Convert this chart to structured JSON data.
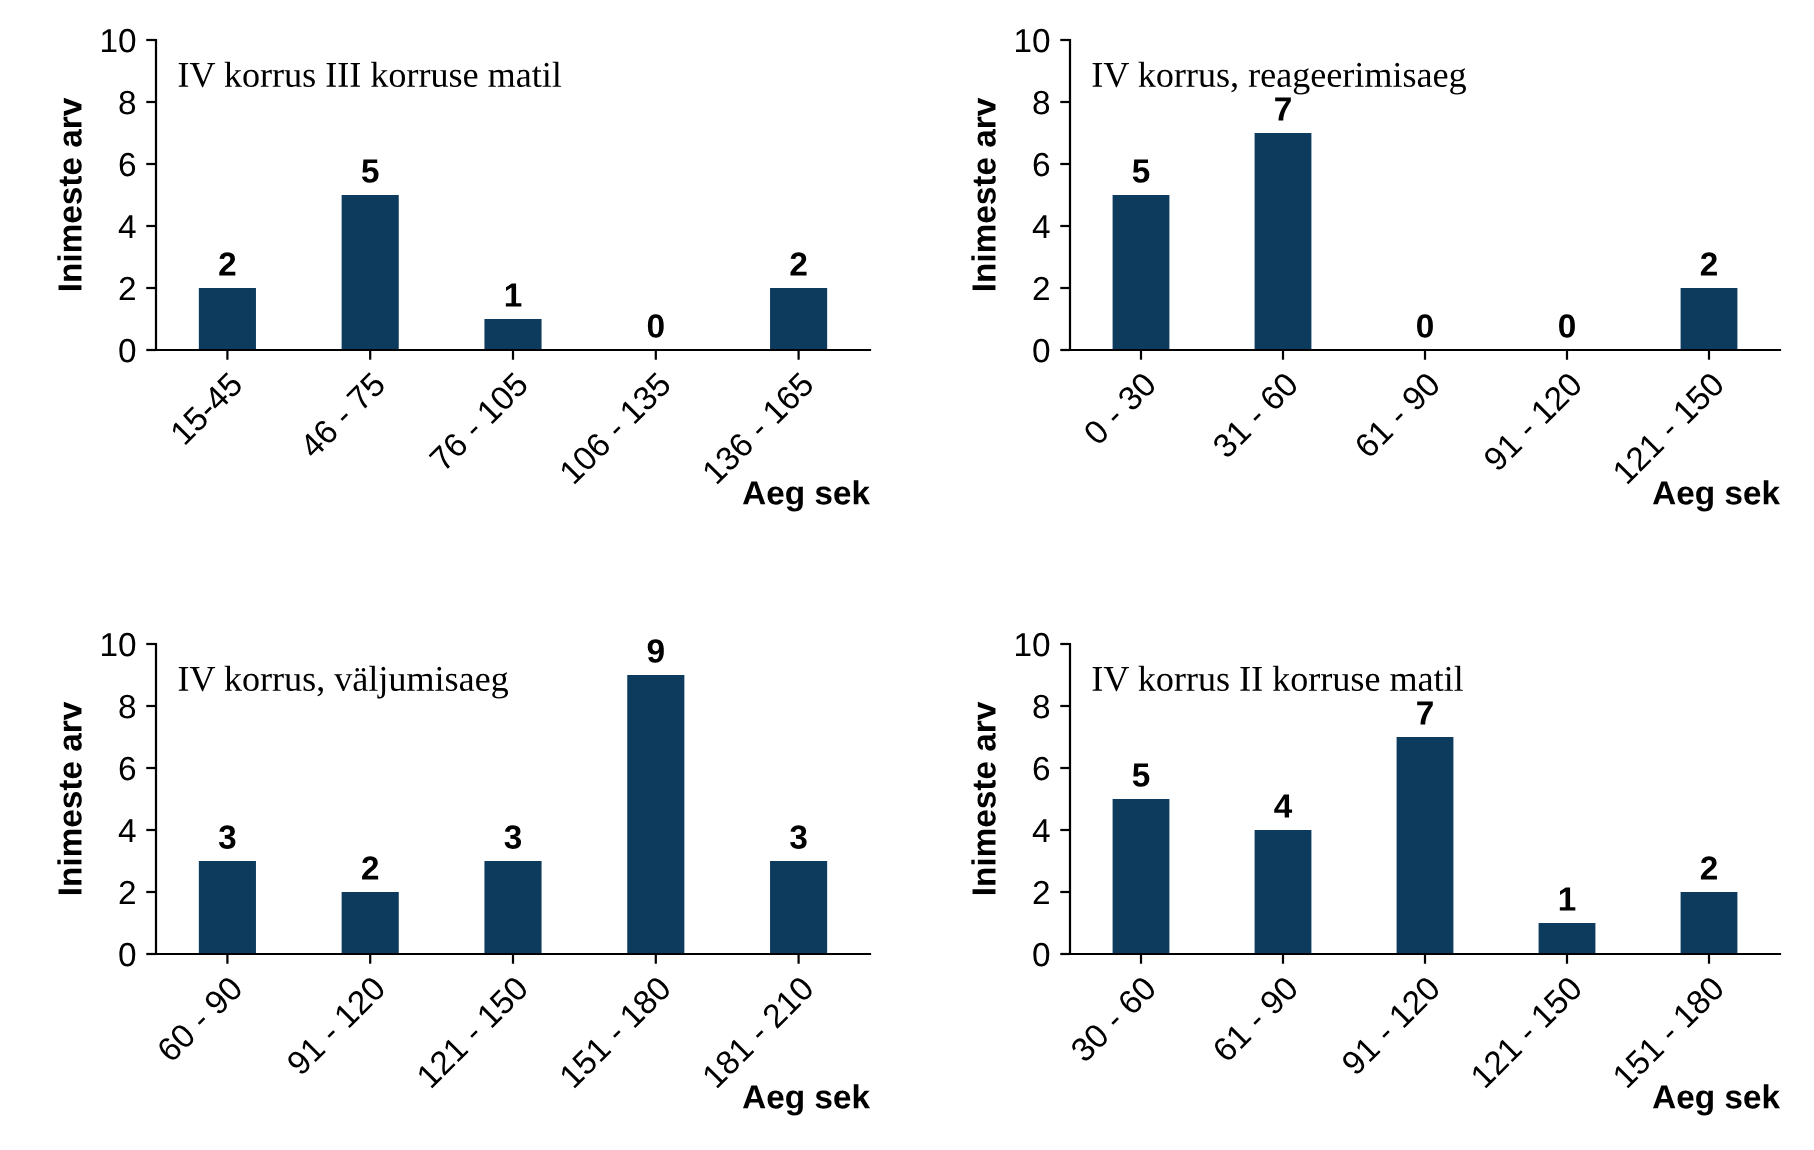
{
  "chart_data": [
    {
      "type": "bar",
      "title": "IV korrus III korruse matil",
      "xlabel": "Aeg sek",
      "ylabel": "Inimeste arv",
      "categories": [
        "15-45",
        "46 - 75",
        "76 - 105",
        "106 - 135",
        "136 - 165"
      ],
      "values": [
        2,
        5,
        1,
        0,
        2
      ],
      "color": "#0d3b5e",
      "ylim": [
        0,
        10
      ],
      "yticks": [
        0,
        2,
        4,
        6,
        8,
        10
      ],
      "data_labels": true,
      "grid": false
    },
    {
      "type": "bar",
      "title": "IV korrus, reageerimisaeg",
      "xlabel": "Aeg sek",
      "ylabel": "Inimeste arv",
      "categories": [
        "0 - 30",
        "31 - 60",
        "61 - 90",
        "91 - 120",
        "121 - 150"
      ],
      "values": [
        5,
        7,
        0,
        0,
        2
      ],
      "color": "#0d3b5e",
      "ylim": [
        0,
        10
      ],
      "yticks": [
        0,
        2,
        4,
        6,
        8,
        10
      ],
      "data_labels": true,
      "grid": false
    },
    {
      "type": "bar",
      "title": "IV korrus, väljumisaeg",
      "xlabel": "Aeg sek",
      "ylabel": "Inimeste arv",
      "categories": [
        "60 - 90",
        "91 - 120",
        "121 - 150",
        "151 - 180",
        "181 - 210"
      ],
      "values": [
        3,
        2,
        3,
        9,
        3
      ],
      "color": "#0d3b5e",
      "ylim": [
        0,
        10
      ],
      "yticks": [
        0,
        2,
        4,
        6,
        8,
        10
      ],
      "data_labels": true,
      "grid": false
    },
    {
      "type": "bar",
      "title": "IV korrus II korruse matil",
      "xlabel": "Aeg sek",
      "ylabel": "Inimeste arv",
      "categories": [
        "30 - 60",
        "61 - 90",
        "91 - 120",
        "121 - 150",
        "151 - 180"
      ],
      "values": [
        5,
        4,
        7,
        1,
        2
      ],
      "color": "#0d3b5e",
      "ylim": [
        0,
        10
      ],
      "yticks": [
        0,
        2,
        4,
        6,
        8,
        10
      ],
      "data_labels": true,
      "grid": false
    }
  ]
}
